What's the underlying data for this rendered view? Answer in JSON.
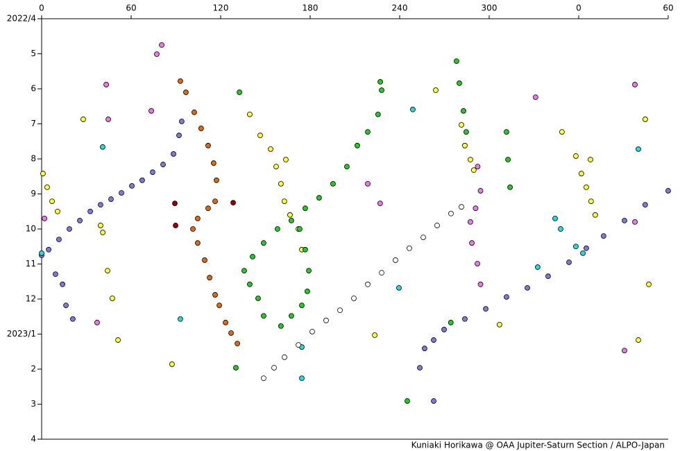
{
  "chart_data": {
    "type": "scatter",
    "xlim": [
      0,
      420
    ],
    "xticks": [
      0,
      60,
      120,
      180,
      240,
      300,
      {
        "value": 360,
        "label": "0"
      },
      {
        "value": 420,
        "label": "60"
      }
    ],
    "ylim": [
      0,
      12
    ],
    "yticks": [
      {
        "value": 0,
        "label": "2022/4"
      },
      {
        "value": 1,
        "label": "5"
      },
      {
        "value": 2,
        "label": "6"
      },
      {
        "value": 3,
        "label": "7"
      },
      {
        "value": 4,
        "label": "8"
      },
      {
        "value": 5,
        "label": "9"
      },
      {
        "value": 6,
        "label": "10"
      },
      {
        "value": 7,
        "label": "11"
      },
      {
        "value": 8,
        "label": "12"
      },
      {
        "value": 9,
        "label": "2023/1"
      },
      {
        "value": 10,
        "label": "2"
      },
      {
        "value": 11,
        "label": "3"
      },
      {
        "value": 12,
        "label": "4"
      }
    ],
    "y_reversed": true,
    "grid": false,
    "credit": "Kuniaki Horikawa @ OAA Jupiter-Saturn Section / ALPO-Japan",
    "series": [
      {
        "color": "#7b7bdb",
        "x": [
          0,
          4.7,
          11.6,
          18.6,
          25.6,
          32.6,
          39.5,
          46.5,
          53.5,
          60.5,
          67.4,
          74.4,
          81.4,
          88.4,
          92.1,
          93.9,
          420,
          404.6,
          390.7,
          376.7,
          365.1,
          353.5,
          339.5,
          325.6,
          311.6,
          297.7,
          283.7,
          269.8,
          262.8,
          256.7,
          9.3,
          14,
          16.3,
          20.9,
          253.5,
          262.8
        ],
        "values": [
          6.75,
          6.59,
          6.3,
          6.0,
          5.76,
          5.5,
          5.31,
          5.15,
          4.97,
          4.77,
          4.61,
          4.38,
          4.16,
          3.86,
          3.33,
          2.93,
          4.91,
          5.31,
          5.76,
          6.2,
          6.55,
          6.95,
          7.35,
          7.68,
          7.94,
          8.28,
          8.57,
          8.87,
          9.17,
          9.41,
          7.29,
          7.58,
          8.18,
          8.57,
          9.96,
          10.91
        ]
      },
      {
        "color": "#ffff33",
        "x": [
          139.5,
          146.5,
          153.5,
          157.2,
          160.4,
          162.7,
          166.5,
          172.1,
          174.4,
          281.4,
          283.7,
          287.4,
          289.7,
          361.8,
          365.1,
          368.3,
          371.1,
          0.9,
          3.7,
          7,
          10.7,
          39.5,
          41,
          27.9,
          44.2,
          47.4,
          51.2,
          163.7,
          348.8,
          358.1,
          404.6,
          407,
          400,
          223.3,
          87.4,
          264.2,
          306.9,
          367.9
        ],
        "values": [
          2.73,
          3.33,
          3.72,
          4.22,
          4.71,
          5.21,
          5.6,
          6.0,
          6.59,
          3.03,
          3.62,
          4.02,
          4.32,
          4.42,
          4.81,
          5.21,
          5.6,
          4.42,
          4.81,
          5.21,
          5.5,
          5.9,
          6.1,
          2.87,
          7.19,
          7.98,
          9.17,
          4.02,
          3.23,
          3.92,
          2.87,
          7.58,
          9.17,
          9.03,
          9.86,
          2.04,
          8.73,
          4.02
        ]
      },
      {
        "color": "#22cc22",
        "x": [
          135.8,
          141.4,
          148.8,
          158.1,
          167.4,
          176.7,
          186,
          195.3,
          204.6,
          211.6,
          218.6,
          225.5,
          227.9,
          227,
          139.5,
          145.1,
          148.8,
          173,
          176.7,
          179.1,
          178.1,
          174.4,
          167.4,
          160.4,
          278.1,
          280,
          282.8,
          284.6,
          311.6,
          312.6,
          314,
          132.6,
          130.2,
          245.1,
          274.3
        ],
        "values": [
          7.19,
          6.79,
          6.4,
          6.0,
          5.76,
          5.41,
          5.11,
          4.71,
          4.22,
          3.62,
          3.23,
          2.73,
          2.04,
          1.8,
          7.58,
          7.98,
          8.48,
          6.0,
          6.59,
          7.19,
          7.78,
          8.18,
          8.48,
          8.77,
          1.21,
          1.84,
          2.63,
          3.23,
          3.23,
          4.02,
          4.81,
          2.1,
          9.96,
          10.91,
          8.67
        ]
      },
      {
        "color": "#e06a10",
        "x": [
          93,
          96.7,
          102.3,
          106.9,
          111.6,
          115.3,
          117.2,
          116.3,
          111.6,
          104.6,
          101.4,
          104.6,
          109.3,
          112.6,
          116.3,
          119.1,
          123.3,
          127,
          131.2
        ],
        "values": [
          1.78,
          2.1,
          2.67,
          3.13,
          3.62,
          4.12,
          4.61,
          5.21,
          5.41,
          5.7,
          6.0,
          6.4,
          6.89,
          7.39,
          7.88,
          8.18,
          8.67,
          8.97,
          9.27
        ]
      },
      {
        "color": "#ee77ee",
        "x": [
          292.3,
          294.2,
          290.9,
          287.4,
          288.4,
          292.1,
          294.2,
          80.5,
          77.2,
          43.3,
          44.7,
          73.5,
          397.7,
          331.1,
          218.6,
          226.9,
          397.7,
          1.9,
          37.2,
          390.7
        ],
        "values": [
          4.22,
          4.91,
          5.41,
          5.8,
          6.4,
          6.99,
          7.58,
          0.75,
          1.01,
          1.88,
          2.87,
          2.63,
          1.88,
          2.24,
          4.71,
          5.27,
          5.8,
          5.7,
          8.67,
          9.47
        ]
      },
      {
        "color": "#22dddd",
        "x": [
          40.9,
          344.2,
          347.9,
          358.1,
          362.8,
          332.5,
          400,
          248.8,
          174.4,
          174.4,
          93,
          0,
          239.5
        ],
        "values": [
          3.66,
          5.7,
          6.0,
          6.5,
          6.69,
          7.09,
          3.72,
          2.59,
          9.37,
          10.26,
          8.57,
          6.69,
          7.68
        ]
      },
      {
        "color": "#ffffff",
        "x": [
          148.8,
          155.8,
          162.8,
          172.1,
          181.4,
          190.7,
          200,
          209.3,
          218.6,
          227.9,
          237.2,
          246.5,
          255.8,
          265.1,
          274.4,
          281.4
        ],
        "values": [
          10.26,
          9.96,
          9.66,
          9.31,
          8.93,
          8.61,
          8.32,
          7.98,
          7.58,
          7.25,
          6.89,
          6.55,
          6.24,
          5.9,
          5.56,
          5.37
        ]
      },
      {
        "color": "#990000",
        "x": [
          89.3,
          89.8,
          128.4
        ],
        "values": [
          5.27,
          5.9,
          5.25
        ]
      }
    ]
  }
}
